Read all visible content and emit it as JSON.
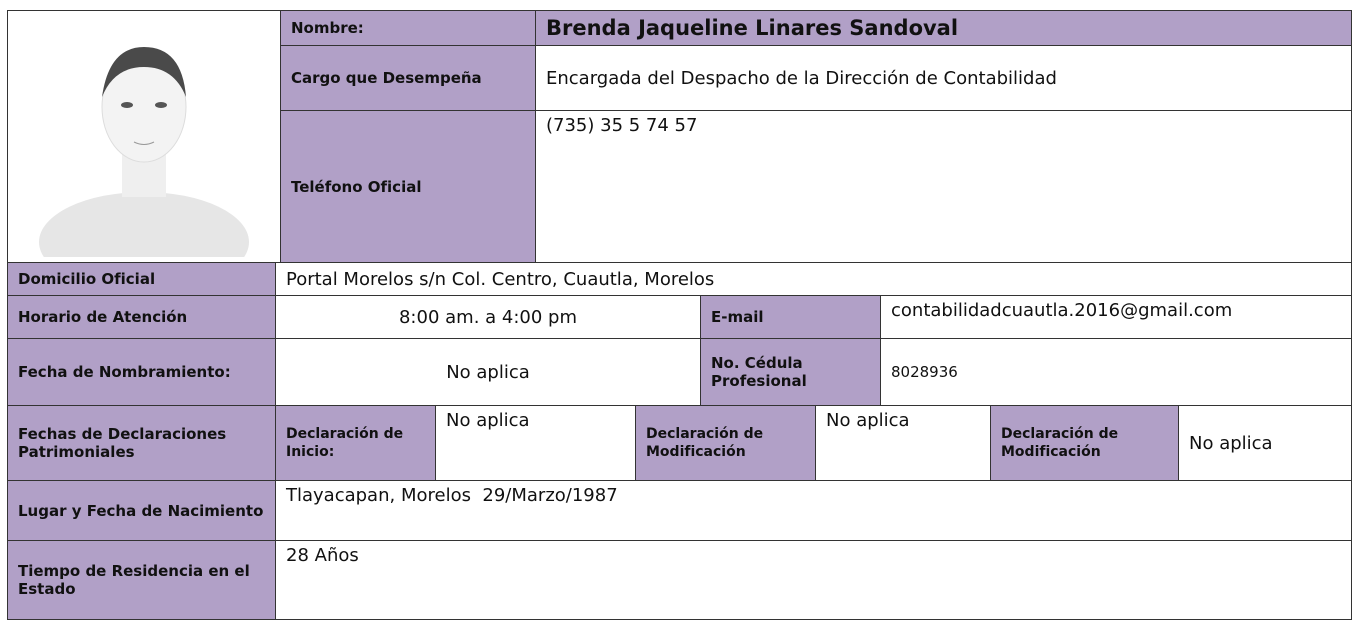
{
  "nombre": {
    "label": "Nombre:",
    "value": "Brenda Jaqueline Linares Sandoval"
  },
  "cargo": {
    "label": "Cargo que Desempeña",
    "value": "Encargada del Despacho de la Dirección de Contabilidad"
  },
  "telefono": {
    "label": "Teléfono Oficial",
    "value": "(735) 35 5 74 57"
  },
  "domicilio": {
    "label": "Domicilio Oficial",
    "value": "Portal Morelos s/n Col. Centro, Cuautla, Morelos"
  },
  "horario": {
    "label": "Horario de Atención",
    "value": "8:00 am. a 4:00 pm"
  },
  "email": {
    "label": "E-mail",
    "value": "contabilidadcuautla.2016@gmail.com"
  },
  "nombramiento": {
    "label": "Fecha de Nombramiento:",
    "value": "No aplica"
  },
  "cedula": {
    "label": "No. Cédula Profesional",
    "value": "8028936"
  },
  "declaraciones": {
    "label": "Fechas de Declaraciones Patrimoniales",
    "items": [
      {
        "label": "Declaración de Inicio:",
        "value": "No aplica"
      },
      {
        "label": "Declaración de Modificación",
        "value": "No aplica"
      },
      {
        "label": "Declaración de Modificación",
        "value": "No aplica"
      }
    ]
  },
  "nacimiento": {
    "label": "Lugar y Fecha de Nacimiento",
    "value": "Tlayacapan, Morelos  29/Marzo/1987"
  },
  "residencia": {
    "label": "Tiempo de Residencia en el Estado",
    "value": "28 Años"
  }
}
